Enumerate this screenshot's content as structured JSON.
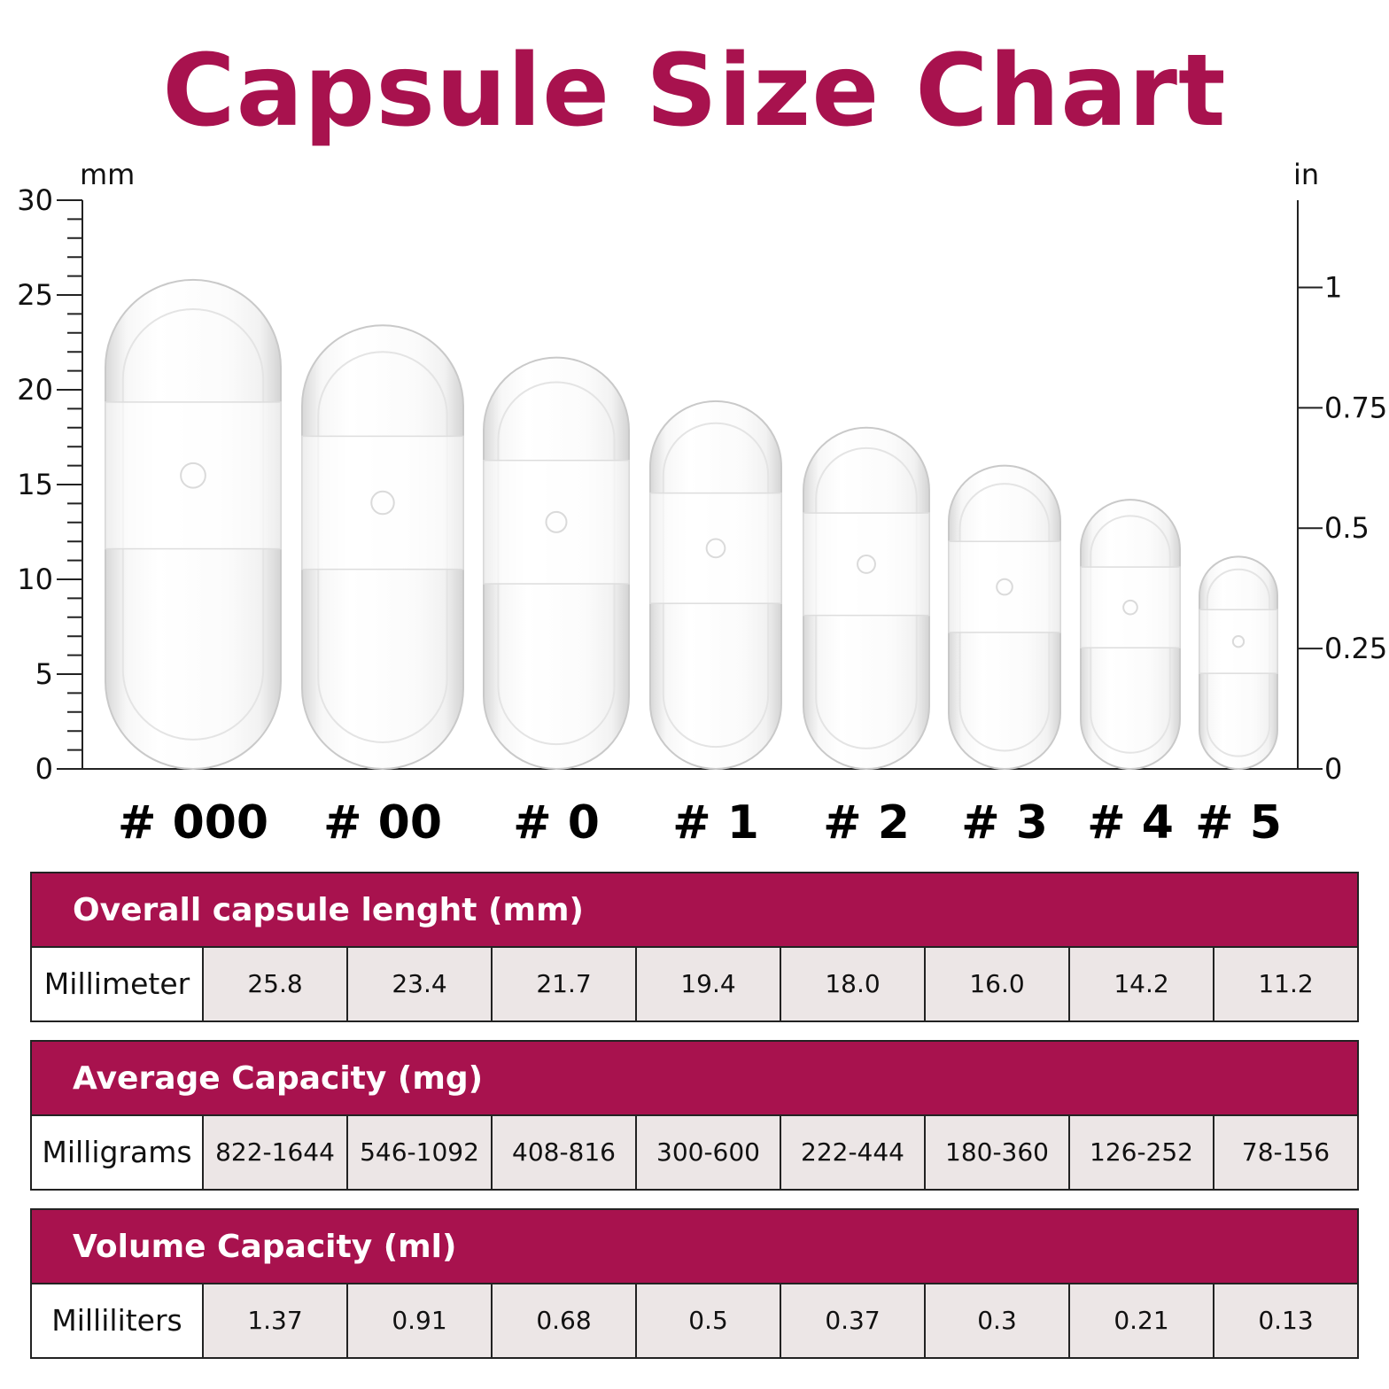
{
  "colors": {
    "accent": "#a8124e",
    "text": "#111111",
    "cell_bg": "#ece6e6"
  },
  "title": "Capsule Size Chart",
  "chart_data": {
    "type": "bar",
    "title": "Capsule Size Chart",
    "categories": [
      "# 000",
      "# 00",
      "# 0",
      "# 1",
      "# 2",
      "# 3",
      "# 4",
      "# 5"
    ],
    "values": [
      25.8,
      23.4,
      21.7,
      19.4,
      18.0,
      16.0,
      14.2,
      11.2
    ],
    "left_axis": {
      "unit": "mm",
      "ylim": [
        0,
        30
      ],
      "ticks": [
        "0",
        "5",
        "10",
        "15",
        "20",
        "25",
        "30"
      ],
      "tick_values": [
        0,
        5,
        10,
        15,
        20,
        25,
        30
      ]
    },
    "right_axis": {
      "unit": "in",
      "ticks": [
        "0",
        "0.25",
        "0.5",
        "0.75",
        "1"
      ],
      "tick_values": [
        0,
        0.25,
        0.5,
        0.75,
        1
      ]
    }
  },
  "tables": [
    {
      "header": "Overall capsule lenght (mm)",
      "row_label": "Millimeter",
      "values": [
        "25.8",
        "23.4",
        "21.7",
        "19.4",
        "18.0",
        "16.0",
        "14.2",
        "11.2"
      ]
    },
    {
      "header": "Average Capacity (mg)",
      "row_label": "Milligrams",
      "values": [
        "822-1644",
        "546-1092",
        "408-816",
        "300-600",
        "222-444",
        "180-360",
        "126-252",
        "78-156"
      ]
    },
    {
      "header": "Volume Capacity (ml)",
      "row_label": "Milliliters",
      "values": [
        "1.37",
        "0.91",
        "0.68",
        "0.5",
        "0.37",
        "0.3",
        "0.21",
        "0.13"
      ]
    }
  ]
}
